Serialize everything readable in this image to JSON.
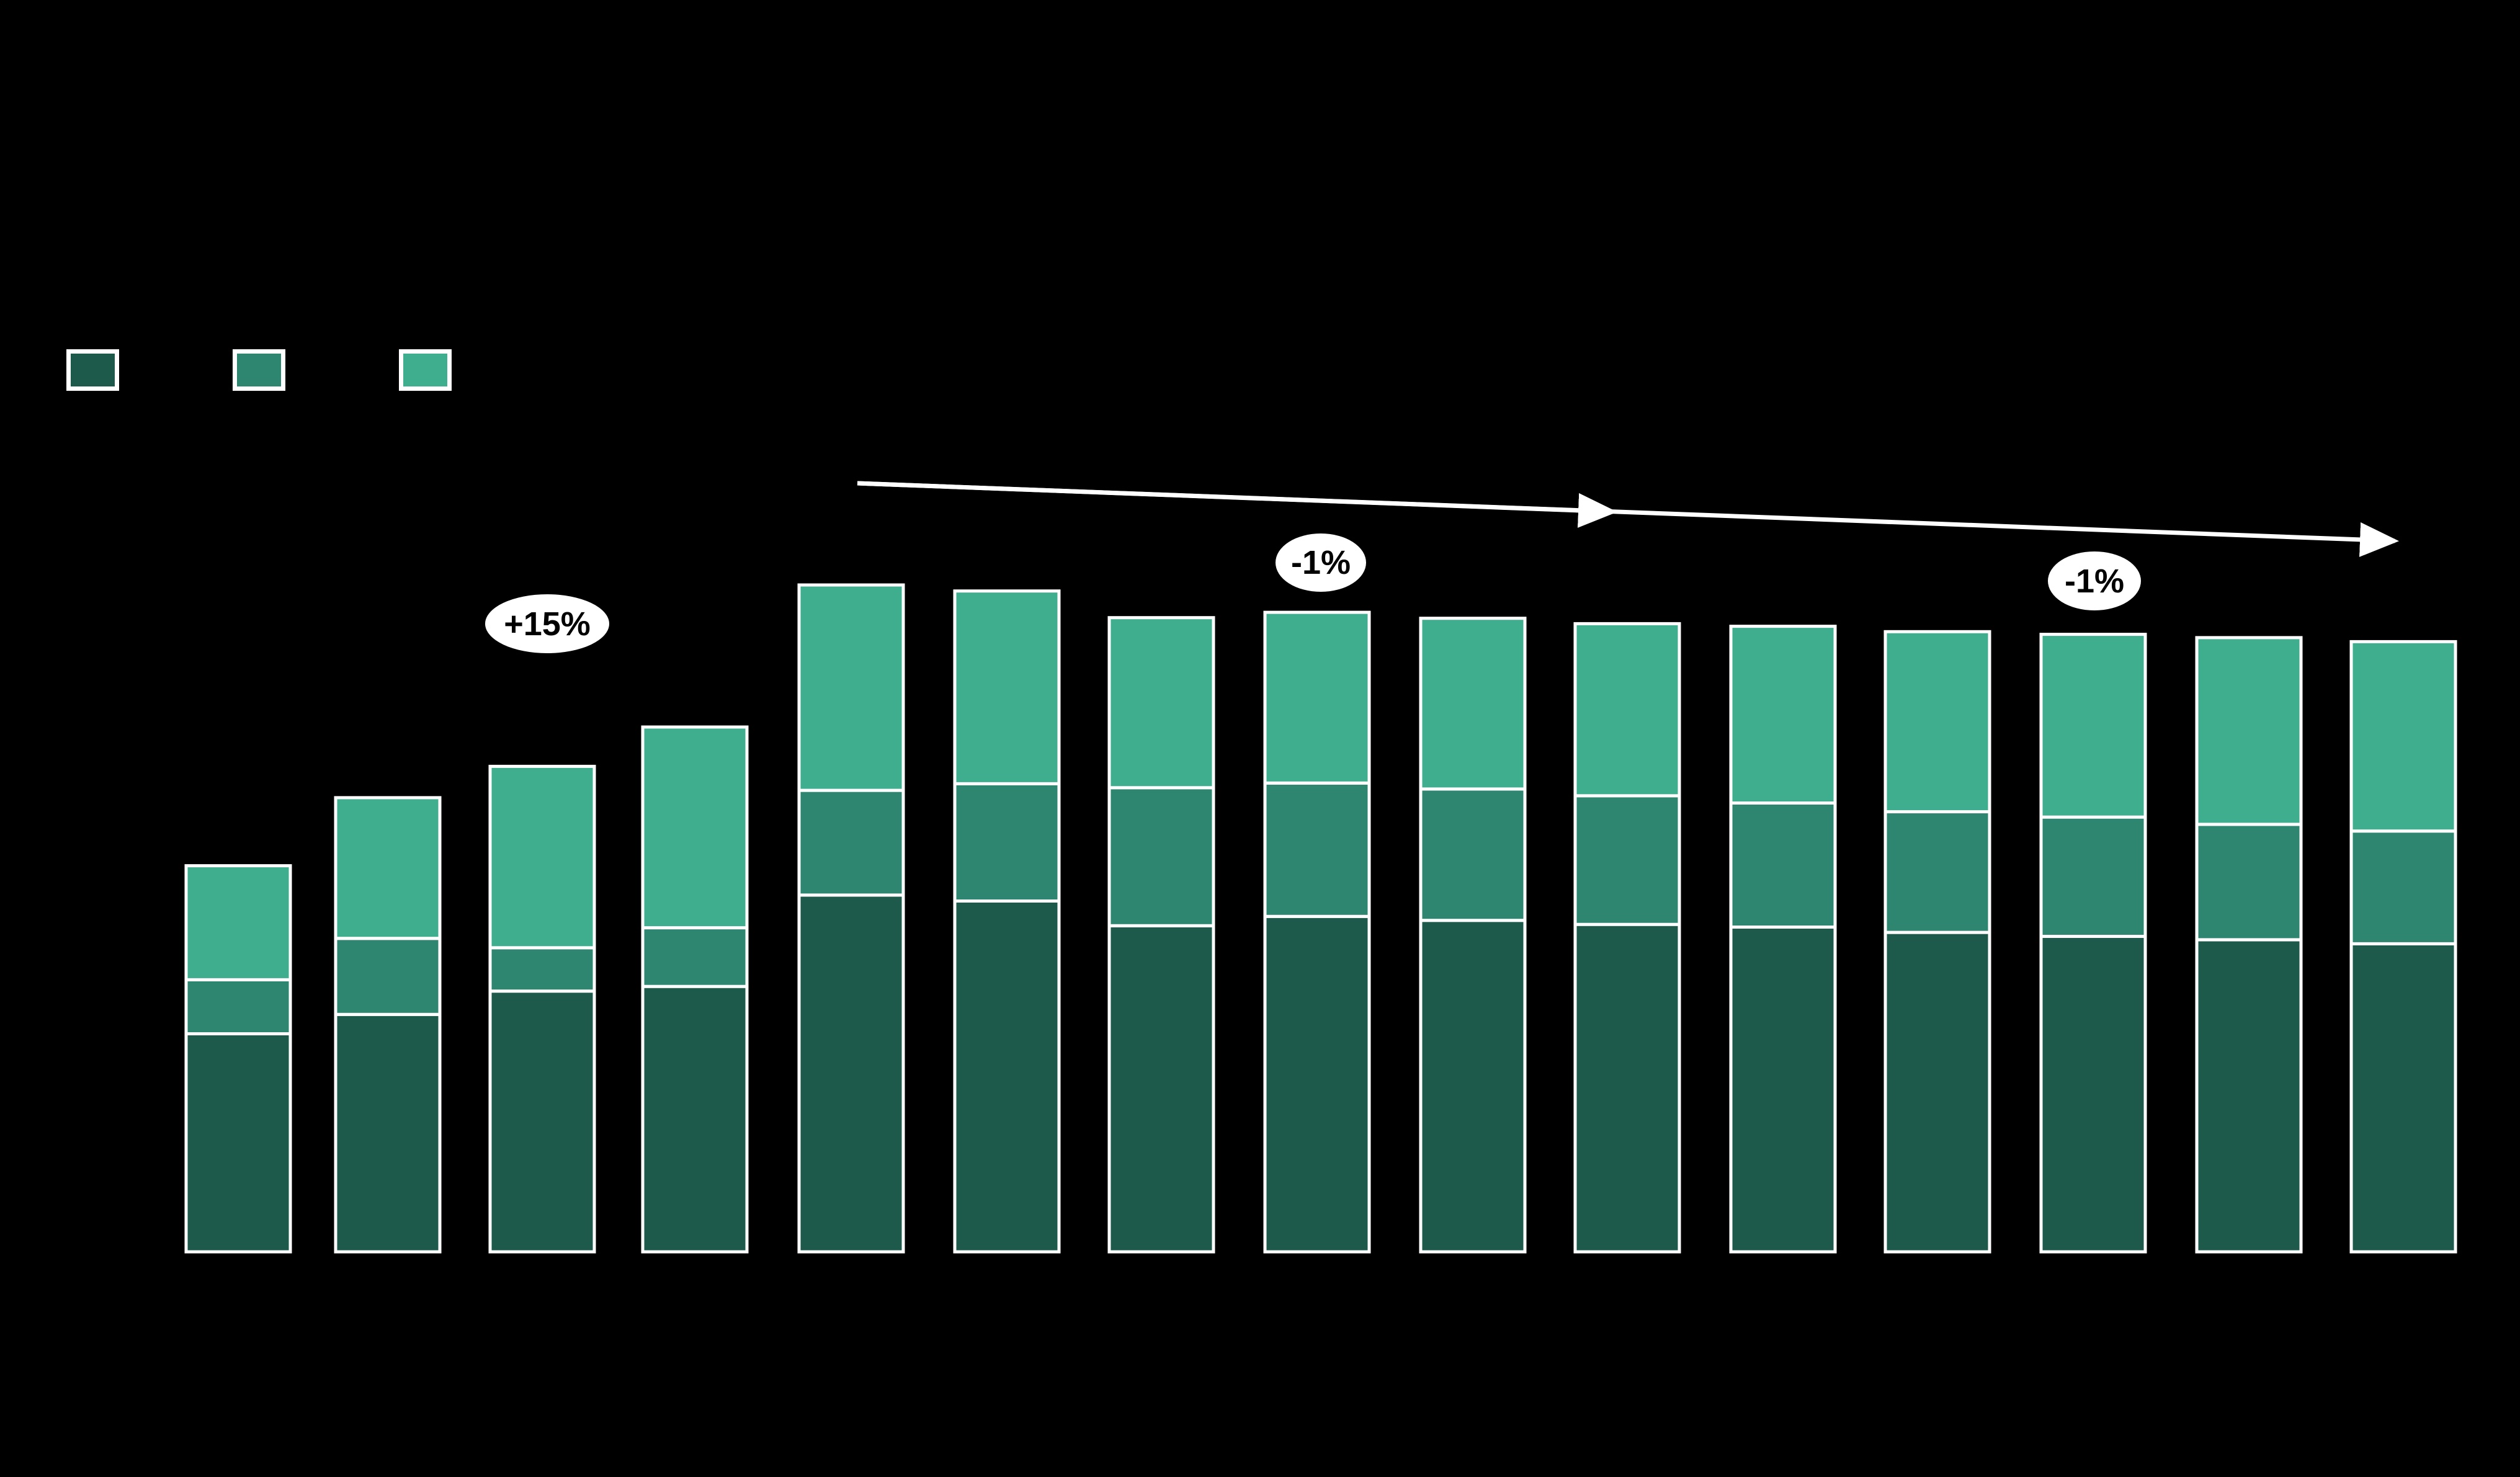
{
  "background": "#000000",
  "accent_white": "#FFFFFF",
  "legend": {
    "position": "top-left",
    "items": [
      {
        "name": "dark-green",
        "color": "#1E5A4B",
        "label": ""
      },
      {
        "name": "mid-green",
        "color": "#2E8570",
        "label": ""
      },
      {
        "name": "light-green",
        "color": "#3FAE8F",
        "label": ""
      }
    ]
  },
  "annotations": [
    {
      "id": "growth",
      "text": "+15%"
    },
    {
      "id": "decline-1",
      "text": "-1%"
    },
    {
      "id": "decline-2",
      "text": "-1%"
    }
  ],
  "chart_data": {
    "type": "bar",
    "stacked": true,
    "bar_count": 15,
    "categories": [
      "",
      "",
      "",
      "",
      "",
      "",
      "",
      "",
      "",
      "",
      "",
      "",
      "",
      "",
      ""
    ],
    "series": [
      {
        "name": "dark-green",
        "color": "#1E5A4B",
        "values": [
          32.7,
          35.6,
          39.1,
          39.8,
          53.5,
          52.6,
          48.9,
          50.3,
          49.7,
          49.1,
          48.7,
          47.9,
          47.3,
          46.8,
          46.2
        ]
      },
      {
        "name": "mid-green",
        "color": "#2E8570",
        "values": [
          8.1,
          11.4,
          6.5,
          8.8,
          15.7,
          17.6,
          20.7,
          20.0,
          19.7,
          19.3,
          18.6,
          18.1,
          17.9,
          17.3,
          16.9
        ]
      },
      {
        "name": "light-green",
        "color": "#3FAE8F",
        "values": [
          17.1,
          21.1,
          27.2,
          30.1,
          30.8,
          28.9,
          25.5,
          25.6,
          25.6,
          25.8,
          26.5,
          27.0,
          27.4,
          28.0,
          28.4
        ]
      }
    ],
    "value_scale": "relative units, tallest stacked bar (bar 5) = 100",
    "ylim": [
      0,
      100
    ],
    "title": "",
    "xlabel": "",
    "ylabel": "",
    "grid": false,
    "axis_labels_visible": false,
    "legend_position": "top-left",
    "annotations": [
      "+15%",
      "-1%",
      "-1%"
    ],
    "trend_arrow": {
      "color": "#FFFFFF",
      "segments": 2,
      "direction": "right-descending"
    }
  }
}
